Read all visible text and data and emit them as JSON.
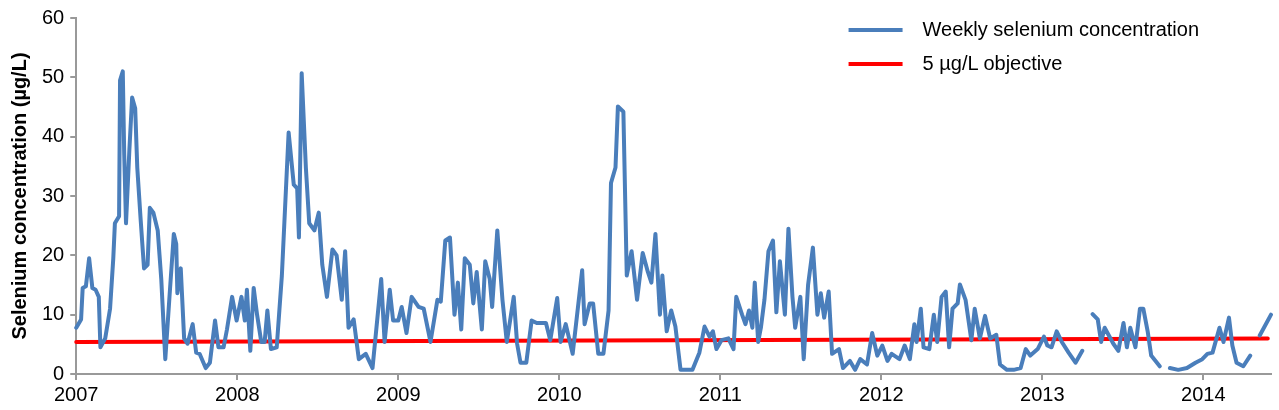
{
  "chart_data": {
    "type": "line",
    "ylabel": "Selenium concentration (µg/L)",
    "xlim": [
      2007,
      2014.42
    ],
    "xticks": [
      2007,
      2008,
      2009,
      2010,
      2011,
      2012,
      2013,
      2014
    ],
    "ylim": [
      0,
      60
    ],
    "yticks": [
      0,
      10,
      20,
      30,
      40,
      50,
      60
    ],
    "grid": false,
    "legend": "top right",
    "marker": "none",
    "line_style": "solid",
    "series": [
      {
        "name": "Weekly selenium concentration",
        "color": "#4a7ebb",
        "x": [
          2007.0,
          2007.03,
          2007.04,
          2007.06,
          2007.08,
          2007.1,
          2007.12,
          2007.14,
          2007.15,
          2007.18,
          2007.21,
          2007.23,
          2007.24,
          2007.266,
          2007.272,
          2007.289,
          2007.298,
          2007.309,
          2007.33,
          2007.347,
          2007.366,
          2007.379,
          2007.4,
          2007.421,
          2007.443,
          2007.457,
          2007.479,
          2007.506,
          2007.528,
          2007.553,
          2007.579,
          2007.606,
          2007.621,
          2007.628,
          2007.649,
          2007.67,
          2007.691,
          2007.723,
          2007.745,
          2007.766,
          2007.804,
          2007.83,
          2007.862,
          2007.883,
          2007.915,
          2007.936,
          2007.968,
          2007.996,
          2008.026,
          2008.047,
          2008.06,
          2008.081,
          2008.102,
          2008.123,
          2008.149,
          2008.17,
          2008.187,
          2008.209,
          2008.245,
          2008.277,
          2008.319,
          2008.351,
          2008.372,
          2008.383,
          2008.4,
          2008.426,
          2008.447,
          2008.479,
          2008.506,
          2008.528,
          2008.557,
          2008.591,
          2008.617,
          2008.649,
          2008.67,
          2008.691,
          2008.723,
          2008.755,
          2008.798,
          2008.84,
          2008.894,
          2008.915,
          2008.947,
          2008.968,
          2009.0,
          2009.021,
          2009.051,
          2009.083,
          2009.126,
          2009.158,
          2009.2,
          2009.243,
          2009.264,
          2009.292,
          2009.321,
          2009.349,
          2009.37,
          2009.391,
          2009.413,
          2009.444,
          2009.466,
          2009.487,
          2009.519,
          2009.54,
          2009.568,
          2009.583,
          2009.615,
          2009.647,
          2009.674,
          2009.717,
          2009.738,
          2009.759,
          2009.795,
          2009.828,
          2009.86,
          2009.891,
          2009.917,
          2009.944,
          2009.987,
          2010.008,
          2010.04,
          2010.083,
          2010.142,
          2010.157,
          2010.189,
          2010.21,
          2010.242,
          2010.274,
          2010.306,
          2010.321,
          2010.349,
          2010.364,
          2010.398,
          2010.419,
          2010.449,
          2010.483,
          2010.518,
          2010.55,
          2010.572,
          2010.597,
          2010.625,
          2010.64,
          2010.667,
          2010.695,
          2010.721,
          2010.753,
          2010.785,
          2010.827,
          2010.87,
          2010.902,
          2010.933,
          2010.954,
          2010.976,
          2011.007,
          2011.05,
          2011.082,
          2011.099,
          2011.135,
          2011.156,
          2011.178,
          2011.199,
          2011.214,
          2011.235,
          2011.252,
          2011.274,
          2011.299,
          2011.327,
          2011.348,
          2011.37,
          2011.401,
          2011.423,
          2011.448,
          2011.465,
          2011.497,
          2011.518,
          2011.545,
          2011.575,
          2011.603,
          2011.624,
          2011.645,
          2011.673,
          2011.694,
          2011.737,
          2011.762,
          2011.805,
          2011.837,
          2011.869,
          2011.911,
          2011.943,
          2011.975,
          2012.006,
          2012.038,
          2012.064,
          2012.113,
          2012.145,
          2012.177,
          2012.205,
          2012.219,
          2012.245,
          2012.262,
          2012.298,
          2012.326,
          2012.347,
          2012.374,
          2012.4,
          2012.421,
          2012.442,
          2012.474,
          2012.488,
          2012.523,
          2012.559,
          2012.58,
          2012.612,
          2012.644,
          2012.676,
          2012.714,
          2012.737,
          2012.78,
          2012.822,
          2012.865,
          2012.897,
          2012.925,
          2012.971,
          2013.01,
          2013.031,
          2013.057,
          2013.089,
          2013.121,
          2013.163,
          2013.206,
          2013.248,
          2013.27,
          2013.312,
          2013.344,
          2013.365,
          2013.387,
          2013.441,
          2013.472,
          2013.504,
          2013.525,
          2013.546,
          2013.578,
          2013.606,
          2013.627,
          2013.654,
          2013.676,
          2013.729,
          2013.75,
          2013.792,
          2013.844,
          2013.898,
          2013.951,
          2013.993,
          2014.025,
          2014.057,
          2014.1,
          2014.125,
          2014.159,
          2014.18,
          2014.206,
          2014.248,
          2014.291,
          2014.32,
          2014.35,
          2014.42
        ],
        "values": [
          7.8,
          9.2,
          14.5,
          14.8,
          19.5,
          14.5,
          14.2,
          13,
          4.5,
          6,
          11,
          19.5,
          25.4,
          26.6,
          49.5,
          51,
          37,
          25.4,
          37.8,
          46.6,
          44.8,
          34.8,
          26,
          17.8,
          18.4,
          28,
          27.2,
          24.2,
          16,
          2.5,
          13,
          23.6,
          21.9,
          13.6,
          17.8,
          6,
          5.1,
          8.4,
          3.6,
          3.4,
          1,
          1.9,
          9,
          4.5,
          4.5,
          7.5,
          13,
          9,
          13,
          9,
          14.2,
          3.9,
          14.5,
          10,
          5.4,
          5.4,
          10.7,
          4.2,
          4.5,
          16.6,
          40.7,
          31.9,
          31.3,
          23,
          50.7,
          34.8,
          25.4,
          24.2,
          27.2,
          18.4,
          13,
          21,
          20,
          12.5,
          20.7,
          7.8,
          9.2,
          2.5,
          3.4,
          1,
          16,
          5.4,
          14.2,
          9,
          9,
          11.3,
          6.9,
          13,
          11.3,
          11,
          5.4,
          12.5,
          12.2,
          22.5,
          23,
          10,
          15.4,
          7.5,
          19.5,
          18.4,
          11.9,
          17.2,
          7.5,
          19,
          16,
          11.3,
          24.2,
          12.5,
          5.4,
          13,
          5.1,
          1.9,
          1.9,
          9,
          8.6,
          8.6,
          8.6,
          5.7,
          12.8,
          5.4,
          8.4,
          3.4,
          17.5,
          8.4,
          11.9,
          11.9,
          3.4,
          3.4,
          10.7,
          32.2,
          34.8,
          45.1,
          44.2,
          16.6,
          20.7,
          12.5,
          20.4,
          17.2,
          15.4,
          23.6,
          10,
          16.6,
          7.2,
          10.7,
          8,
          0.7,
          0.7,
          0.7,
          3.6,
          8,
          6.3,
          7.2,
          4.2,
          5.7,
          6,
          4.2,
          13,
          10,
          8.4,
          10.7,
          7.8,
          15.4,
          5.4,
          7.8,
          12.5,
          20.7,
          22.5,
          10.4,
          19,
          10,
          24.5,
          13,
          7.8,
          13,
          2.5,
          15,
          21.3,
          10,
          13.6,
          9.5,
          13.9,
          3.4,
          4.2,
          1,
          2.2,
          0.7,
          2.5,
          1.6,
          6.9,
          3.1,
          4.8,
          2.2,
          3.4,
          2.5,
          4.8,
          2.5,
          8.4,
          5.4,
          11,
          4.5,
          4.2,
          10,
          5.4,
          13,
          13.9,
          4.5,
          11,
          11.9,
          15.1,
          12.5,
          5.7,
          11,
          6,
          9.8,
          6,
          6.6,
          1.6,
          0.7,
          0.7,
          1,
          4.2,
          3.1,
          4.2,
          6.3,
          4.8,
          4.5,
          7.2,
          5.4,
          3.6,
          1.9,
          3.9,
          null,
          10.1,
          9.2,
          5.4,
          7.8,
          5.1,
          3.9,
          8.6,
          4.5,
          7.8,
          4.5,
          11,
          11,
          7.2,
          3.1,
          1.3,
          null,
          1,
          0.7,
          1,
          1.9,
          2.5,
          3.4,
          3.6,
          7.8,
          5.4,
          9.5,
          4.8,
          1.9,
          1.3,
          3.1,
          null,
          6.5,
          10.0
        ]
      },
      {
        "name": "5 µg/L objective",
        "color": "#ff0000",
        "x": [
          2007,
          2014.4
        ],
        "values": [
          5.4,
          6.0
        ]
      }
    ]
  }
}
